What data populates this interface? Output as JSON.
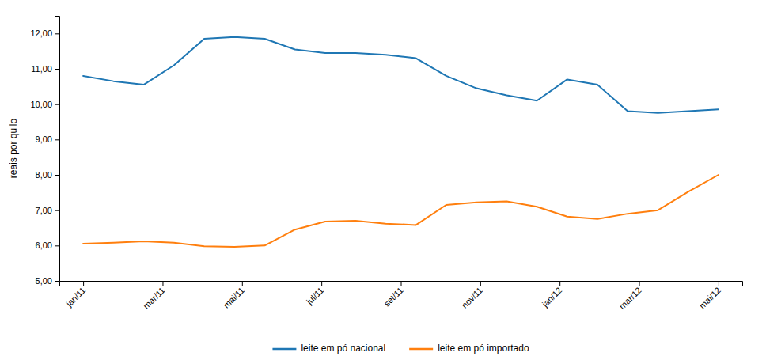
{
  "chart_data": {
    "type": "line",
    "y_label": "reais por quilo",
    "x": [
      0,
      0.380952380952381,
      0.761904761904762,
      1.142857142857143,
      1.523809523809524,
      1.904761904761905,
      2.285714285714286,
      2.666666666666667,
      3.047619047619048,
      3.428571428571429,
      3.80952380952381,
      4.19047619047619,
      4.571428571428571,
      4.952380952380952,
      5.333333333333333,
      5.714285714285714,
      6.095238095238095,
      6.476190476190476,
      6.857142857142857,
      7.238095238095238,
      7.619047619047619,
      8
    ],
    "xlim": [
      -0.3,
      8.3
    ],
    "xticks": [
      {
        "value": 0,
        "label": "jan/11"
      },
      {
        "value": 1,
        "label": "mar/11"
      },
      {
        "value": 2,
        "label": "mai/11"
      },
      {
        "value": 3,
        "label": "jul/11"
      },
      {
        "value": 4,
        "label": "set/11"
      },
      {
        "value": 5,
        "label": "nov/11"
      },
      {
        "value": 6,
        "label": "jan/12"
      },
      {
        "value": 7,
        "label": "mar/12"
      },
      {
        "value": 8,
        "label": "mai/12"
      }
    ],
    "ylim": [
      5.0,
      12.5
    ],
    "yticks": [
      {
        "value": 5.0,
        "label": "5,00"
      },
      {
        "value": 6.0,
        "label": "6,00"
      },
      {
        "value": 7.0,
        "label": "7,00"
      },
      {
        "value": 8.0,
        "label": "8,00"
      },
      {
        "value": 9.0,
        "label": "9,00"
      },
      {
        "value": 10.0,
        "label": "10,00"
      },
      {
        "value": 11.0,
        "label": "11,00"
      },
      {
        "value": 12.0,
        "label": "12,00"
      }
    ],
    "series": [
      {
        "name": "leite em pó nacional",
        "values": [
          10.8,
          10.65,
          10.55,
          11.1,
          11.85,
          11.9,
          11.85,
          11.55,
          11.45,
          11.45,
          11.4,
          11.3,
          10.8,
          10.45,
          10.25,
          10.1,
          10.7,
          10.55,
          9.8,
          9.75,
          9.8,
          9.85
        ]
      },
      {
        "name": "leite em pó importado",
        "values": [
          6.05,
          6.08,
          6.12,
          6.08,
          5.98,
          5.96,
          6.0,
          6.45,
          6.68,
          6.7,
          6.62,
          6.58,
          7.15,
          7.22,
          7.25,
          7.1,
          6.82,
          6.75,
          6.9,
          7.0,
          7.52,
          8.0
        ]
      }
    ],
    "grid": false,
    "legend": "bottom"
  }
}
